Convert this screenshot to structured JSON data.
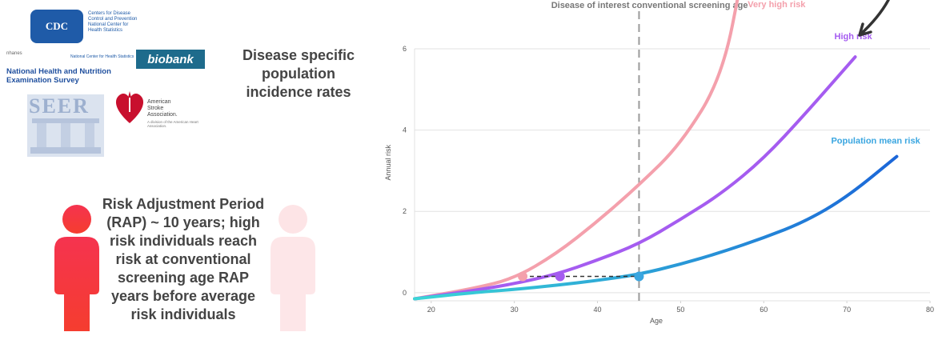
{
  "logos": {
    "cdc_badge": "CDC",
    "cdc_lines": [
      "Centers for Disease",
      "Control and Prevention",
      "National Center for",
      "Health Statistics"
    ],
    "nhanes_small": "nhanes",
    "nchs_small": "National Center for Health Statistics",
    "nhanes_title": "National Health and Nutrition Examination Survey",
    "biobank": "biobank",
    "seer": "SEER",
    "aha_lines": [
      "American",
      "Stroke",
      "Association."
    ],
    "aha_sub": "A division of the American Heart Association."
  },
  "left_panel": {
    "disease_text": "Disease specific population incidence rates",
    "rap_text": "Risk Adjustment Period (RAP) ~ 10 years; high risk individuals reach risk at conventional screening age RAP years before average risk individuals"
  },
  "colors": {
    "very_high": "#f4a0ac",
    "high": "#a55cf0",
    "population_start": "#3ad6d6",
    "population_end": "#1b66d8",
    "person_left": "#f5334f",
    "person_right": "#fde4e6"
  },
  "chart_data": {
    "type": "line",
    "xlabel": "Age",
    "ylabel": "Annual risk",
    "xlim": [
      18,
      80
    ],
    "ylim": [
      -0.2,
      7.2
    ],
    "xticks": [
      20,
      30,
      40,
      50,
      60,
      70,
      80
    ],
    "yticks": [
      0,
      2,
      4,
      6
    ],
    "grid": true,
    "vline": {
      "x": 45,
      "label": "Disease of interest conventional screening age"
    },
    "series": [
      {
        "name": "Very high risk",
        "color": "#f4a0ac",
        "points": [
          [
            18,
            -0.15
          ],
          [
            25,
            0.1
          ],
          [
            30,
            0.35
          ],
          [
            35,
            0.95
          ],
          [
            40,
            1.75
          ],
          [
            45,
            2.65
          ],
          [
            50,
            3.65
          ],
          [
            55,
            5.3
          ],
          [
            57.5,
            7.9
          ]
        ]
      },
      {
        "name": "High risk",
        "color": "#a55cf0",
        "points": [
          [
            18,
            -0.15
          ],
          [
            25,
            0.05
          ],
          [
            30,
            0.22
          ],
          [
            35,
            0.45
          ],
          [
            40,
            0.8
          ],
          [
            45,
            1.2
          ],
          [
            50,
            1.8
          ],
          [
            55,
            2.45
          ],
          [
            60,
            3.3
          ],
          [
            65,
            4.4
          ],
          [
            71,
            5.8
          ]
        ]
      },
      {
        "name": "Population mean risk",
        "color": "#1b66d8",
        "points": [
          [
            18,
            -0.15
          ],
          [
            25,
            0.0
          ],
          [
            30,
            0.08
          ],
          [
            35,
            0.18
          ],
          [
            40,
            0.3
          ],
          [
            45,
            0.45
          ],
          [
            50,
            0.7
          ],
          [
            55,
            1.0
          ],
          [
            60,
            1.35
          ],
          [
            65,
            1.75
          ],
          [
            70,
            2.35
          ],
          [
            76,
            3.35
          ]
        ]
      }
    ],
    "markers": [
      {
        "x": 31,
        "y": 0.4,
        "color": "#f4a0ac"
      },
      {
        "x": 35.5,
        "y": 0.4,
        "color": "#a55cf0"
      },
      {
        "x": 45,
        "y": 0.4,
        "color": "#3aa6e0"
      }
    ],
    "rap_line": {
      "x1": 31,
      "x2": 45,
      "y": 0.4
    }
  }
}
